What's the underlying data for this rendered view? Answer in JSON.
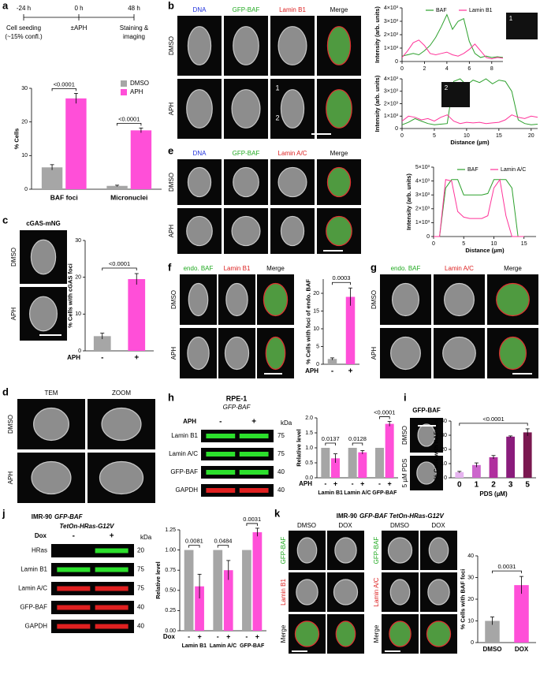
{
  "panel_labels": [
    "a",
    "b",
    "c",
    "d",
    "e",
    "f",
    "g",
    "h",
    "i",
    "j",
    "k"
  ],
  "timeline": {
    "times": [
      "-24 h",
      "0 h",
      "48 h"
    ],
    "events": [
      "Cell seeding",
      "(~15% confl.)",
      "±APH",
      "Staining &",
      "imaging"
    ]
  },
  "b": {
    "columns": [
      "DNA",
      "GFP-BAF",
      "Lamin B1",
      "Merge"
    ],
    "rows": [
      "DMSO",
      "APH"
    ],
    "regions": [
      "1",
      "2"
    ]
  },
  "c": {
    "title": "cGAS-mNG",
    "rows": [
      "DMSO",
      "APH"
    ]
  },
  "d": {
    "columns": [
      "TEM",
      "ZOOM"
    ],
    "rows": [
      "DMSO",
      "APH"
    ]
  },
  "e": {
    "columns": [
      "DNA",
      "GFP-BAF",
      "Lamin A/C",
      "Merge"
    ],
    "rows": [
      "DMSO",
      "APH"
    ]
  },
  "f": {
    "columns": [
      "endo. BAF",
      "Lamin B1",
      "Merge"
    ],
    "rows": [
      "DMSO",
      "APH"
    ]
  },
  "g": {
    "columns": [
      "endo. BAF",
      "Lamin A/C",
      "Merge"
    ],
    "rows": [
      "DMSO",
      "APH"
    ]
  },
  "h": {
    "cell_line": "RPE-1",
    "construct": "GFP-BAF",
    "treatment": "APH",
    "lanes": [
      "-",
      "+"
    ],
    "unit": "kDa",
    "blots": [
      "Lamin B1",
      "Lamin A/C",
      "GFP-BAF",
      "GAPDH"
    ],
    "markers": [
      "75",
      "75",
      "40",
      "40"
    ]
  },
  "i": {
    "title": "GFP-BAF",
    "rows": [
      "DMSO",
      "5 µM PDS"
    ]
  },
  "j": {
    "cell_line": "IMR-90",
    "construct": [
      "GFP-BAF",
      "TetOn-HRas-G12V"
    ],
    "treatment": "Dox",
    "lanes": [
      "-",
      "+"
    ],
    "unit": "kDa",
    "blots": [
      "HRas",
      "Lamin B1",
      "Lamin A/C",
      "GFP-BAF",
      "GAPDH"
    ],
    "markers": [
      "20",
      "75",
      "75",
      "40",
      "40"
    ]
  },
  "k": {
    "cell_line": "IMR-90",
    "construct": "GFP-BAF TetOn-HRas-G12V",
    "columns": [
      "DMSO",
      "DOX",
      "DMSO",
      "DOX"
    ],
    "rows_left": [
      "GFP-BAF",
      "Lamin B1",
      "Merge"
    ],
    "rows_right": [
      "GFP-BAF",
      "Lamin A/C",
      "Merge"
    ]
  },
  "chart_data": [
    {
      "type": "bar",
      "ylabel": "% Cells",
      "categories": [
        "BAF foci",
        "Micronuclei"
      ],
      "series": [
        {
          "name": "DMSO",
          "color": "#a6a6a6",
          "values": [
            6.5,
            1
          ],
          "errors": [
            0.8,
            0.2
          ]
        },
        {
          "name": "APH",
          "color": "#ff4fd8",
          "values": [
            27,
            17.5
          ],
          "errors": [
            1.5,
            0.7
          ]
        }
      ],
      "ylim": [
        0,
        30
      ],
      "yticks": [
        0,
        10,
        20,
        30
      ],
      "annotations": [
        "<0.0001",
        "<0.0001"
      ],
      "legend": "upper right"
    },
    {
      "type": "line",
      "ylabel": "Intensity (arb. units)",
      "x": [
        0,
        0.5,
        1,
        1.5,
        2,
        2.5,
        3,
        3.5,
        4,
        4.5,
        5,
        5.5,
        6,
        6.5,
        7,
        7.5,
        8,
        8.5,
        9
      ],
      "series": [
        {
          "name": "BAF",
          "color": "#2ca02c",
          "values": [
            400,
            500,
            600,
            500,
            800,
            1200,
            1800,
            2600,
            3500,
            2400,
            3000,
            3200,
            1500,
            600,
            300,
            400,
            300,
            350,
            300
          ]
        },
        {
          "name": "Lamin B1",
          "color": "#ff3399",
          "values": [
            300,
            800,
            1400,
            1600,
            1200,
            600,
            500,
            600,
            700,
            500,
            400,
            600,
            900,
            1300,
            800,
            300,
            200,
            300,
            250
          ]
        }
      ],
      "xlim": [
        0,
        9
      ],
      "xticks": [
        0,
        2,
        4,
        6,
        8
      ],
      "ylim": [
        0,
        4000
      ],
      "yticks": [
        0,
        {
          "value": 1000,
          "label": "1×10³"
        },
        {
          "value": 2000,
          "label": "2×10³"
        },
        {
          "value": 3000,
          "label": "3×10³"
        },
        {
          "value": 4000,
          "label": "4×10³"
        }
      ],
      "legend": "upper center",
      "inset": "1"
    },
    {
      "type": "line",
      "ylabel": "Intensity (arb. units)",
      "xlabel": "Distance (µm)",
      "x": [
        0,
        1,
        2,
        3,
        4,
        5,
        6,
        7,
        8,
        9,
        10,
        11,
        12,
        13,
        14,
        15,
        16,
        17,
        18,
        19,
        20,
        21
      ],
      "series": [
        {
          "color": "#2ca02c",
          "values": [
            300,
            500,
            800,
            600,
            400,
            300,
            350,
            400,
            3800,
            4000,
            3500,
            3900,
            3700,
            4000,
            3600,
            3900,
            3800,
            3000,
            700,
            400,
            300,
            350
          ]
        },
        {
          "color": "#ff3399",
          "values": [
            600,
            1000,
            900,
            700,
            800,
            600,
            900,
            1100,
            600,
            400,
            500,
            450,
            500,
            400,
            450,
            500,
            700,
            1100,
            900,
            800,
            1000,
            900
          ]
        }
      ],
      "xlim": [
        0,
        21
      ],
      "xticks": [
        0,
        5,
        10,
        15,
        20
      ],
      "ylim": [
        0,
        4000
      ],
      "yticks": [
        0,
        {
          "value": 1000,
          "label": "1×10³"
        },
        {
          "value": 2000,
          "label": "2×10³"
        },
        {
          "value": 3000,
          "label": "3×10³"
        },
        {
          "value": 4000,
          "label": "4×10³"
        }
      ],
      "inset": "2"
    },
    {
      "type": "bar",
      "ylabel": "% Cells with cGAS foci",
      "xlabel": "APH",
      "categories": [
        "-",
        "+"
      ],
      "values": [
        4,
        19.5
      ],
      "errors": [
        0.8,
        1.5
      ],
      "colors": [
        "#a6a6a6",
        "#ff4fd8"
      ],
      "ylim": [
        0,
        30
      ],
      "yticks": [
        0,
        10,
        20,
        30
      ],
      "annotations": [
        "<0.0001"
      ]
    },
    {
      "type": "line",
      "ylabel": "Intensity (arb. units)",
      "xlabel": "Distance (µm)",
      "x": [
        0,
        1,
        2,
        3,
        4,
        5,
        6,
        7,
        8,
        9,
        10,
        11,
        12,
        13,
        14,
        15
      ],
      "series": [
        {
          "name": "BAF",
          "color": "#2ca02c",
          "values": [
            0,
            0,
            3500,
            4100,
            4100,
            3000,
            3000,
            3000,
            3000,
            3100,
            4100,
            4100,
            4100,
            3500,
            0,
            0
          ]
        },
        {
          "name": "Lamin A/C",
          "color": "#ff3399",
          "values": [
            0,
            0,
            4100,
            4000,
            1800,
            1400,
            1300,
            1300,
            1300,
            1500,
            3500,
            4100,
            1500,
            0,
            0,
            0
          ]
        }
      ],
      "xlim": [
        0,
        17
      ],
      "xticks": [
        0,
        5,
        10,
        15
      ],
      "ylim": [
        0,
        5000
      ],
      "yticks": [
        0,
        {
          "value": 1000,
          "label": "1×10³"
        },
        {
          "value": 2000,
          "label": "2×10³"
        },
        {
          "value": 3000,
          "label": "3×10³"
        },
        {
          "value": 4000,
          "label": "4×10³"
        },
        {
          "value": 5000,
          "label": "5×10³"
        }
      ],
      "legend": "upper center"
    },
    {
      "type": "bar",
      "ylabel": "% Cells with foci of endo. BAF",
      "xlabel": "APH",
      "categories": [
        "-",
        "+"
      ],
      "values": [
        1.5,
        19
      ],
      "errors": [
        0.3,
        2.5
      ],
      "colors": [
        "#a6a6a6",
        "#ff4fd8"
      ],
      "ylim": [
        0,
        24
      ],
      "yticks": [
        0,
        5,
        10,
        15,
        20
      ],
      "annotations": [
        "0.0003"
      ]
    },
    {
      "type": "bar",
      "ylabel": "Relative level",
      "xlabel": "APH",
      "categories": [
        "Lamin B1",
        "Lamin A/C",
        "GFP-BAF"
      ],
      "series": [
        {
          "name": "-",
          "color": "#a6a6a6",
          "values": [
            1,
            1,
            1
          ]
        },
        {
          "name": "+",
          "color": "#ff4fd8",
          "values": [
            0.65,
            0.85,
            1.8
          ],
          "errors": [
            0.15,
            0.06,
            0.08
          ]
        }
      ],
      "ylim": [
        0,
        2
      ],
      "yticks": [
        {
          "value": 0,
          "label": "0.0"
        },
        {
          "value": 0.5,
          "label": "0.5"
        },
        {
          "value": 1,
          "label": "1.0"
        },
        {
          "value": 1.5,
          "label": "1.5"
        },
        {
          "value": 2,
          "label": "2.0"
        }
      ],
      "annotations": [
        "0.0137",
        "0.0128",
        "<0.0001"
      ]
    },
    {
      "type": "bar",
      "ylabel": "% Cells with BAF foci",
      "xlabel": "PDS (µM)",
      "categories": [
        "0",
        "1",
        "2",
        "3",
        "5"
      ],
      "values": [
        4,
        9,
        14.5,
        29,
        32
      ],
      "errors": [
        0.5,
        1.5,
        1.2,
        0.5,
        2.5
      ],
      "colors": [
        "#e6b3ef",
        "#cc66cc",
        "#b0309e",
        "#8a1c7c",
        "#7a1850"
      ],
      "ylim": [
        0,
        40
      ],
      "yticks": [
        0,
        10,
        20,
        30,
        40
      ],
      "annotations": [
        "<0.0001"
      ]
    },
    {
      "type": "bar",
      "ylabel": "Relative level",
      "xlabel": "Dox",
      "categories": [
        "Lamin B1",
        "Lamin A/C",
        "GFP-BAF"
      ],
      "series": [
        {
          "name": "-",
          "color": "#a6a6a6",
          "values": [
            1,
            1,
            1
          ]
        },
        {
          "name": "+",
          "color": "#ff4fd8",
          "values": [
            0.55,
            0.75,
            1.22
          ],
          "errors": [
            0.15,
            0.12,
            0.05
          ]
        }
      ],
      "ylim": [
        0,
        1.25
      ],
      "yticks": [
        {
          "value": 0,
          "label": "0.00"
        },
        {
          "value": 0.25,
          "label": "0.25"
        },
        {
          "value": 0.5,
          "label": "0.50"
        },
        {
          "value": 0.75,
          "label": "0.75"
        },
        {
          "value": 1,
          "label": "1.00"
        },
        {
          "value": 1.25,
          "label": "1.25"
        }
      ],
      "annotations": [
        "0.0081",
        "0.0484",
        "0.0031"
      ]
    },
    {
      "type": "bar",
      "ylabel": "% Cells with BAF foci",
      "categories": [
        "DMSO",
        "DOX"
      ],
      "values": [
        10,
        26.5
      ],
      "errors": [
        1.8,
        4
      ],
      "colors": [
        "#a6a6a6",
        "#ff4fd8"
      ],
      "ylim": [
        0,
        40
      ],
      "yticks": [
        0,
        10,
        20,
        30,
        40
      ],
      "annotations": [
        "0.0031"
      ]
    }
  ]
}
